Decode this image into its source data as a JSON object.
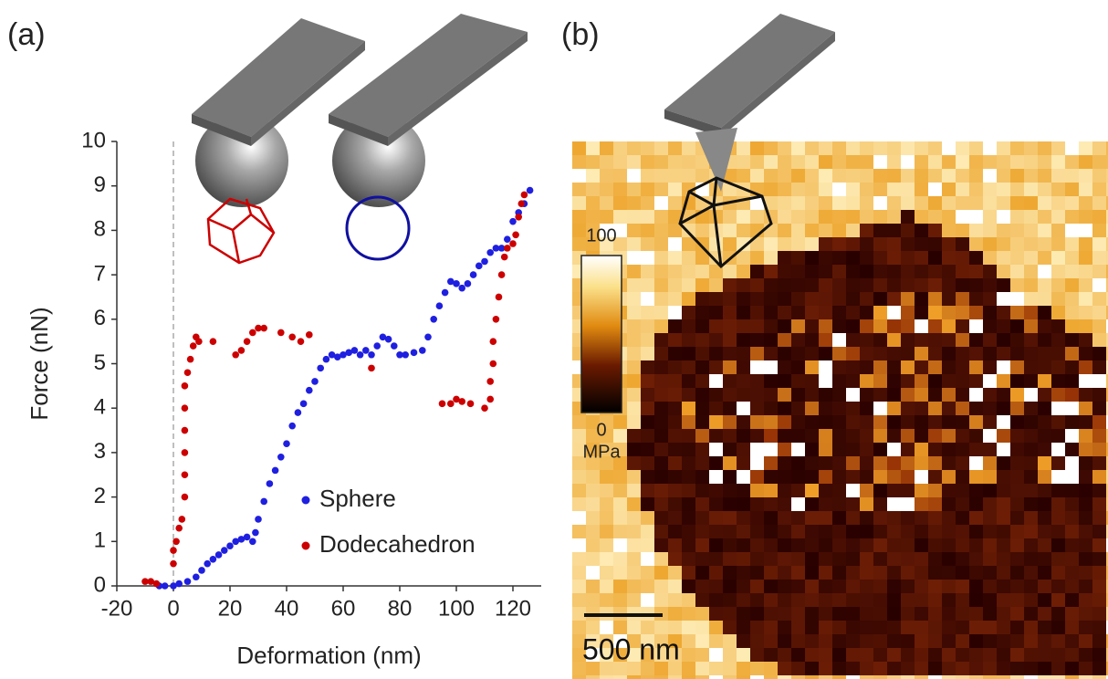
{
  "panel_labels": [
    "(a)",
    "(b)"
  ],
  "chart_data": {
    "type": "scatter",
    "x_label": "Deformation (nm)",
    "y_label": "Force (nN)",
    "xlim": [
      -20,
      130
    ],
    "xticks": [
      -20,
      0,
      20,
      40,
      60,
      80,
      100,
      120
    ],
    "ylim": [
      0,
      10
    ],
    "yticks": [
      0,
      1,
      2,
      3,
      4,
      5,
      6,
      7,
      8,
      9,
      10
    ],
    "grid": false,
    "legend": "lower right",
    "series": [
      {
        "name": "Sphere",
        "color": "#1f1fe0",
        "x": [
          -5,
          -3,
          0,
          2,
          5,
          8,
          10,
          12,
          14,
          16,
          18,
          20,
          22,
          24,
          26,
          28,
          29,
          30,
          32,
          34,
          36,
          38,
          40,
          42,
          44,
          46,
          48,
          50,
          52,
          54,
          56,
          58,
          60,
          62,
          64,
          66,
          68,
          70,
          72,
          74,
          76,
          78,
          80,
          82,
          85,
          88,
          90,
          92,
          94,
          96,
          98,
          100,
          102,
          104,
          106,
          108,
          110,
          112,
          114,
          116,
          118,
          120,
          122,
          124,
          126
        ],
        "values": [
          0,
          0,
          0,
          0.05,
          0.1,
          0.2,
          0.35,
          0.5,
          0.6,
          0.7,
          0.8,
          0.9,
          1.0,
          1.05,
          1.1,
          1.0,
          1.2,
          1.5,
          1.9,
          2.3,
          2.6,
          2.9,
          3.2,
          3.6,
          3.9,
          4.1,
          4.4,
          4.6,
          4.9,
          5.1,
          5.2,
          5.15,
          5.2,
          5.25,
          5.3,
          5.2,
          5.3,
          5.2,
          5.4,
          5.6,
          5.55,
          5.4,
          5.2,
          5.2,
          5.25,
          5.3,
          5.6,
          6.0,
          6.3,
          6.6,
          6.85,
          6.8,
          6.7,
          6.8,
          7.0,
          7.2,
          7.3,
          7.5,
          7.6,
          7.6,
          7.8,
          8.2,
          8.4,
          8.6,
          8.9
        ]
      },
      {
        "name": "Dodecahedron",
        "color": "#cc0000",
        "x": [
          -10,
          -8,
          -6,
          0,
          0,
          1,
          2,
          3,
          4,
          4,
          4,
          4,
          4,
          4,
          5,
          6,
          7,
          8,
          9,
          14,
          22,
          24,
          26,
          28,
          30,
          32,
          38,
          42,
          45,
          48,
          70,
          95,
          98,
          100,
          102,
          105,
          110,
          112,
          112,
          113,
          113,
          114,
          115,
          116,
          117,
          118,
          120,
          121,
          122,
          123,
          124
        ],
        "values": [
          0.1,
          0.1,
          0.05,
          0.5,
          0.8,
          1.0,
          1.3,
          1.5,
          2.0,
          2.5,
          3.0,
          3.5,
          4.0,
          4.5,
          4.8,
          5.1,
          5.4,
          5.6,
          5.5,
          5.5,
          5.2,
          5.3,
          5.5,
          5.7,
          5.8,
          5.8,
          5.7,
          5.6,
          5.5,
          5.65,
          4.9,
          4.1,
          4.1,
          4.2,
          4.15,
          4.1,
          4.0,
          4.2,
          4.6,
          5.0,
          5.5,
          6.0,
          6.5,
          7.0,
          7.4,
          7.6,
          7.7,
          7.9,
          8.3,
          8.6,
          8.8
        ]
      }
    ]
  },
  "modulus_map": {
    "colorbar_max": 100,
    "colorbar_min": 0,
    "unit": "MPa",
    "scale_bar": "500 nm"
  }
}
